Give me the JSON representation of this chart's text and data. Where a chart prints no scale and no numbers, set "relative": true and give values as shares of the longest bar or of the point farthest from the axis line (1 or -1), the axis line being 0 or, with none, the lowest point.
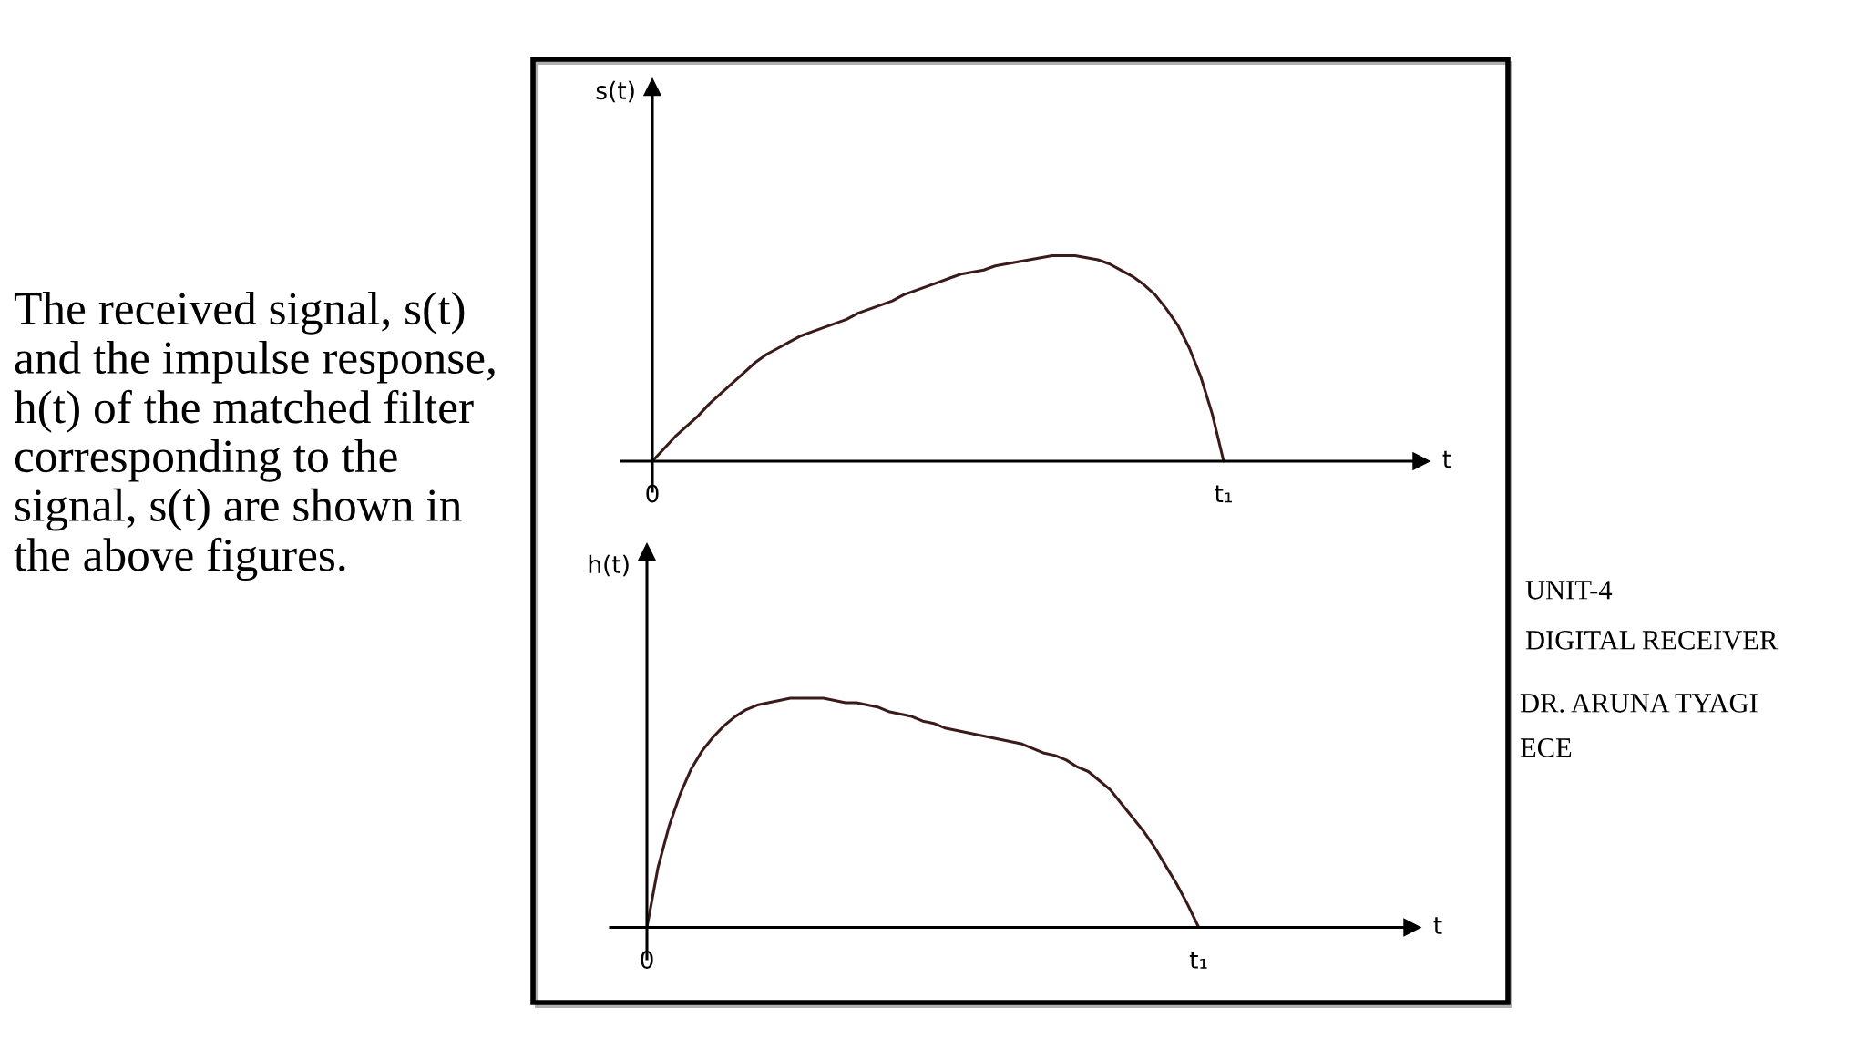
{
  "chart_data": [
    {
      "type": "line",
      "relative": true,
      "categories": [
        "0",
        null,
        null,
        null,
        null,
        null,
        null,
        null,
        null,
        null,
        null,
        null,
        null,
        null,
        null,
        null,
        null,
        null,
        null,
        null,
        null,
        null,
        null,
        null,
        null,
        null,
        null,
        null,
        null,
        null,
        null,
        null,
        null,
        null,
        null,
        null,
        null,
        null,
        null,
        null,
        null,
        null,
        null,
        null,
        null,
        null,
        null,
        null,
        null,
        null,
        "t₁",
        null,
        null,
        null,
        null,
        null,
        null,
        null,
        null,
        null,
        null,
        null,
        null,
        null,
        null,
        null,
        null,
        null
      ],
      "values": [
        0,
        0.06,
        0.12,
        0.17,
        0.22,
        0.28,
        0.33,
        0.38,
        0.43,
        0.48,
        0.52,
        0.55,
        0.58,
        0.61,
        0.63,
        0.65,
        0.67,
        0.69,
        0.72,
        0.74,
        0.76,
        0.78,
        0.81,
        0.83,
        0.85,
        0.87,
        0.89,
        0.91,
        0.92,
        0.93,
        0.95,
        0.96,
        0.97,
        0.98,
        0.99,
        1,
        1,
        1,
        0.99,
        0.98,
        0.96,
        0.93,
        0.9,
        0.86,
        0.81,
        0.74,
        0.66,
        0.55,
        0.41,
        0.23,
        0,
        null,
        null,
        null,
        null,
        null,
        null,
        null,
        null,
        null,
        null,
        null,
        null,
        null,
        null,
        null,
        null,
        null
      ],
      "color": "#3b1a1a",
      "xlabel": "t",
      "ylabel": "s(t)",
      "tick_labels": "x",
      "annotations": [
        "The received signal, s(t)\nand the impulse response,\nh(t) of the matched filter\ncorresponding to the\nsignal, s(t) are shown in\nthe above figures."
      ]
    },
    {
      "type": "line",
      "relative": true,
      "categories": [
        "0",
        null,
        null,
        null,
        null,
        null,
        null,
        null,
        null,
        null,
        null,
        null,
        null,
        null,
        null,
        null,
        null,
        null,
        null,
        null,
        null,
        null,
        null,
        null,
        null,
        null,
        null,
        null,
        null,
        null,
        null,
        null,
        null,
        null,
        null,
        null,
        null,
        null,
        null,
        null,
        null,
        null,
        null,
        null,
        null,
        null,
        null,
        null,
        null,
        null,
        "t₁",
        null,
        null,
        null,
        null,
        null,
        null,
        null,
        null,
        null,
        null,
        null,
        null,
        null,
        null,
        null,
        null,
        null,
        null,
        null
      ],
      "values": [
        0,
        0.26,
        0.44,
        0.58,
        0.69,
        0.77,
        0.83,
        0.88,
        0.92,
        0.95,
        0.97,
        0.98,
        0.99,
        1,
        1,
        1,
        1,
        0.99,
        0.98,
        0.98,
        0.97,
        0.96,
        0.94,
        0.93,
        0.92,
        0.9,
        0.89,
        0.87,
        0.86,
        0.85,
        0.84,
        0.83,
        0.82,
        0.81,
        0.8,
        0.78,
        0.76,
        0.75,
        0.73,
        0.7,
        0.68,
        0.64,
        0.6,
        0.54,
        0.48,
        0.42,
        0.35,
        0.27,
        0.19,
        0.1,
        0,
        null,
        null,
        null,
        null,
        null,
        null,
        null,
        null,
        null,
        null,
        null,
        null,
        null,
        null,
        null,
        null,
        null,
        null,
        null
      ],
      "color": "#3b1a1a",
      "xlabel": "t",
      "ylabel": "h(t)",
      "tick_labels": "x",
      "annotations": [
        "UNIT-4",
        "DIGITAL RECEIVER",
        "DR. ARUNA TYAGI",
        "ECE"
      ]
    }
  ]
}
